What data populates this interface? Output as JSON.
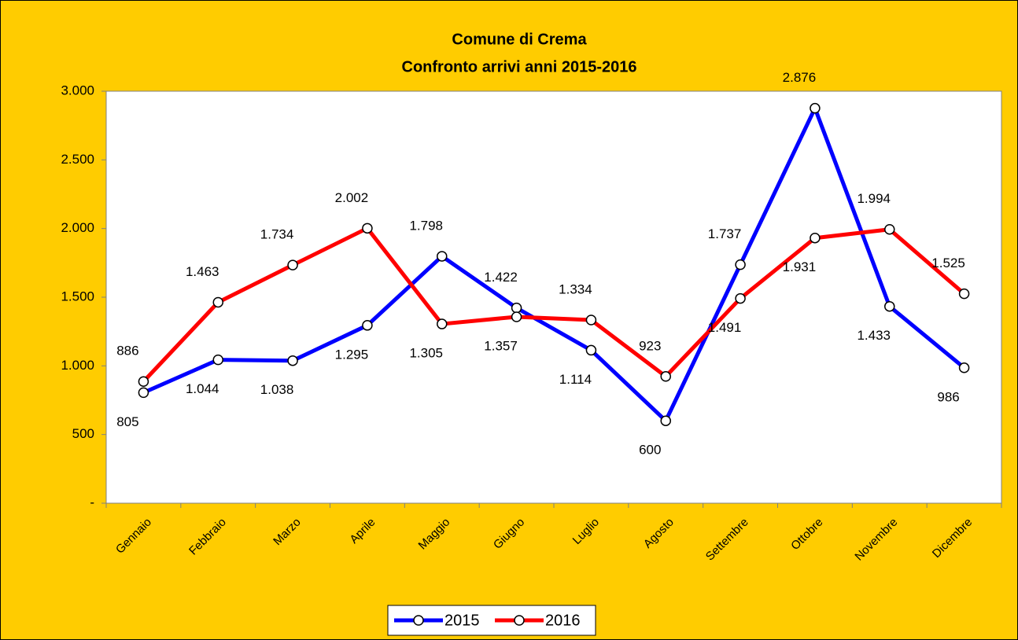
{
  "chart_data": {
    "type": "line",
    "title": "Comune di Crema",
    "subtitle": "Confronto arrivi anni 2015-2016",
    "categories": [
      "Gennaio",
      "Febbraio",
      "Marzo",
      "Aprile",
      "Maggio",
      "Giugno",
      "Luglio",
      "Agosto",
      "Settembre",
      "Ottobre",
      "Novembre",
      "Dicembre"
    ],
    "series": [
      {
        "name": "2015",
        "color": "#0000ff",
        "values": [
          805,
          1044,
          1038,
          1295,
          1798,
          1422,
          1114,
          600,
          1737,
          2876,
          1433,
          986
        ],
        "value_labels": [
          "805",
          "1.044",
          "1.038",
          "1.295",
          "1.798",
          "1.422",
          "1.114",
          "600",
          "1.737",
          "2.876",
          "1.433",
          "986"
        ]
      },
      {
        "name": "2016",
        "color": "#ff0000",
        "values": [
          886,
          1463,
          1734,
          2002,
          1305,
          1357,
          1334,
          923,
          1491,
          1931,
          1994,
          1525
        ],
        "value_labels": [
          "886",
          "1.463",
          "1.734",
          "2.002",
          "1.305",
          "1.357",
          "1.334",
          "923",
          "1.491",
          "1.931",
          "1.994",
          "1.525"
        ]
      }
    ],
    "ylim": [
      0,
      3000
    ],
    "yticks": [
      {
        "value": 0,
        "label": "-"
      },
      500,
      {
        "value": 1000,
        "label": "1.000"
      },
      {
        "value": 1500,
        "label": "1.500"
      },
      {
        "value": 2000,
        "label": "2.000"
      },
      {
        "value": 2500,
        "label": "2.500"
      },
      {
        "value": 3000,
        "label": "3.000"
      }
    ],
    "background": "#ffcc00",
    "legend": "bottom"
  }
}
